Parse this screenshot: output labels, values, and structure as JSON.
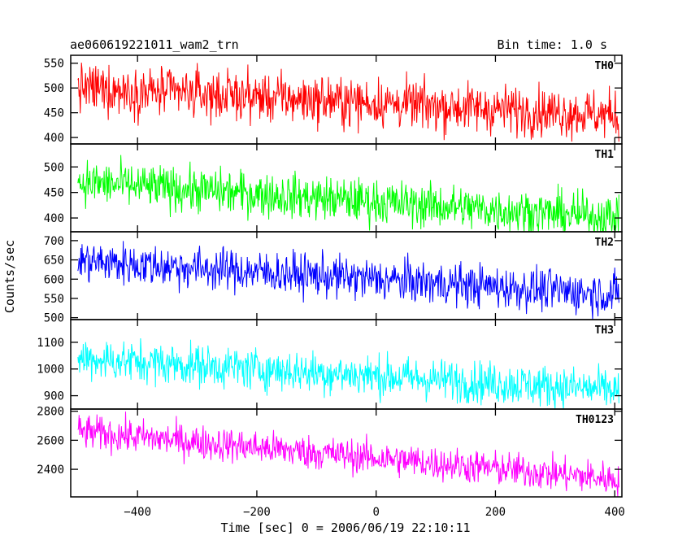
{
  "header": {
    "title": "ae060619221011_wam2_trn",
    "bin_time": "Bin time: 1.0 s"
  },
  "x_axis": {
    "label": "Time [sec] 0 = 2006/06/19 22:10:11",
    "range": [
      -512,
      412
    ],
    "ticks": [
      -400,
      -200,
      0,
      200,
      400
    ],
    "tick_labels": [
      "−400",
      "−200",
      "0",
      "200",
      "400"
    ]
  },
  "y_axis": {
    "label": "Counts/sec"
  },
  "chart_data": {
    "type": "line",
    "x_range": [
      -500,
      407
    ],
    "bin_time_s": 1.0,
    "panels": [
      {
        "name": "TH0",
        "color": "#ff0000",
        "ylim": [
          387,
          566
        ],
        "ticks": [
          400,
          450,
          500,
          550
        ],
        "tick_labels": [
          "400",
          "450",
          "500",
          "550"
        ],
        "start": 500,
        "end": 445,
        "noise": 25
      },
      {
        "name": "TH1",
        "color": "#00ff00",
        "ylim": [
          373,
          545
        ],
        "ticks": [
          400,
          450,
          500
        ],
        "tick_labels": [
          "400",
          "450",
          "500"
        ],
        "start": 470,
        "end": 400,
        "noise": 22
      },
      {
        "name": "TH2",
        "color": "#0000ff",
        "ylim": [
          495,
          723
        ],
        "ticks": [
          500,
          550,
          600,
          650,
          700
        ],
        "tick_labels": [
          "500",
          "550",
          "600",
          "650",
          "700"
        ],
        "start": 648,
        "end": 560,
        "noise": 28
      },
      {
        "name": "TH3",
        "color": "#00ffff",
        "ylim": [
          850,
          1185
        ],
        "ticks": [
          900,
          1000,
          1100
        ],
        "tick_labels": [
          "900",
          "1000",
          "1100"
        ],
        "start": 1040,
        "end": 920,
        "noise": 40
      },
      {
        "name": "TH0123",
        "color": "#ff00ff",
        "ylim": [
          2210,
          2815
        ],
        "ticks": [
          2400,
          2600,
          2800
        ],
        "tick_labels": [
          "2400",
          "2600",
          "2800"
        ],
        "start": 2660,
        "end": 2330,
        "noise": 60
      }
    ]
  }
}
